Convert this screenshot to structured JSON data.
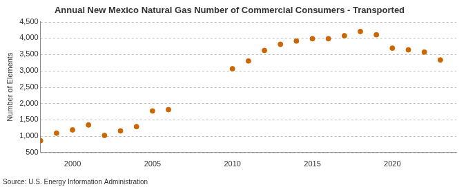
{
  "chart_data": {
    "type": "scatter",
    "title": "Annual New Mexico Natural Gas Number of Commercial Consumers - Transported",
    "y_label": "Number of Elements",
    "source": "Source: U.S. Energy Information Administration",
    "x": [
      1998,
      1999,
      2000,
      2001,
      2002,
      2003,
      2004,
      2005,
      2006,
      2010,
      2011,
      2012,
      2013,
      2014,
      2015,
      2016,
      2017,
      2018,
      2019,
      2020,
      2021,
      2022,
      2023
    ],
    "values": [
      860,
      1090,
      1190,
      1340,
      1020,
      1160,
      1290,
      1770,
      1810,
      3060,
      3300,
      3620,
      3810,
      3910,
      3980,
      3980,
      4070,
      4200,
      4100,
      3690,
      3640,
      3570,
      3330
    ],
    "color": "#cc6600",
    "marker": "circle",
    "xlim": [
      1998,
      2024
    ],
    "xticks": [
      2000,
      2005,
      2010,
      2015,
      2020
    ],
    "ylim": [
      500,
      4500
    ],
    "yticks": [
      500,
      {
        "value": 1000,
        "label": "1,000"
      },
      {
        "value": 1500,
        "label": "1,500"
      },
      {
        "value": 2000,
        "label": "2,000"
      },
      {
        "value": 2500,
        "label": "2,500"
      },
      {
        "value": 3000,
        "label": "3,000"
      },
      {
        "value": 3500,
        "label": "3,500"
      },
      {
        "value": 4000,
        "label": "4,000"
      },
      {
        "value": 4500,
        "label": "4,500"
      }
    ],
    "grid": true
  }
}
